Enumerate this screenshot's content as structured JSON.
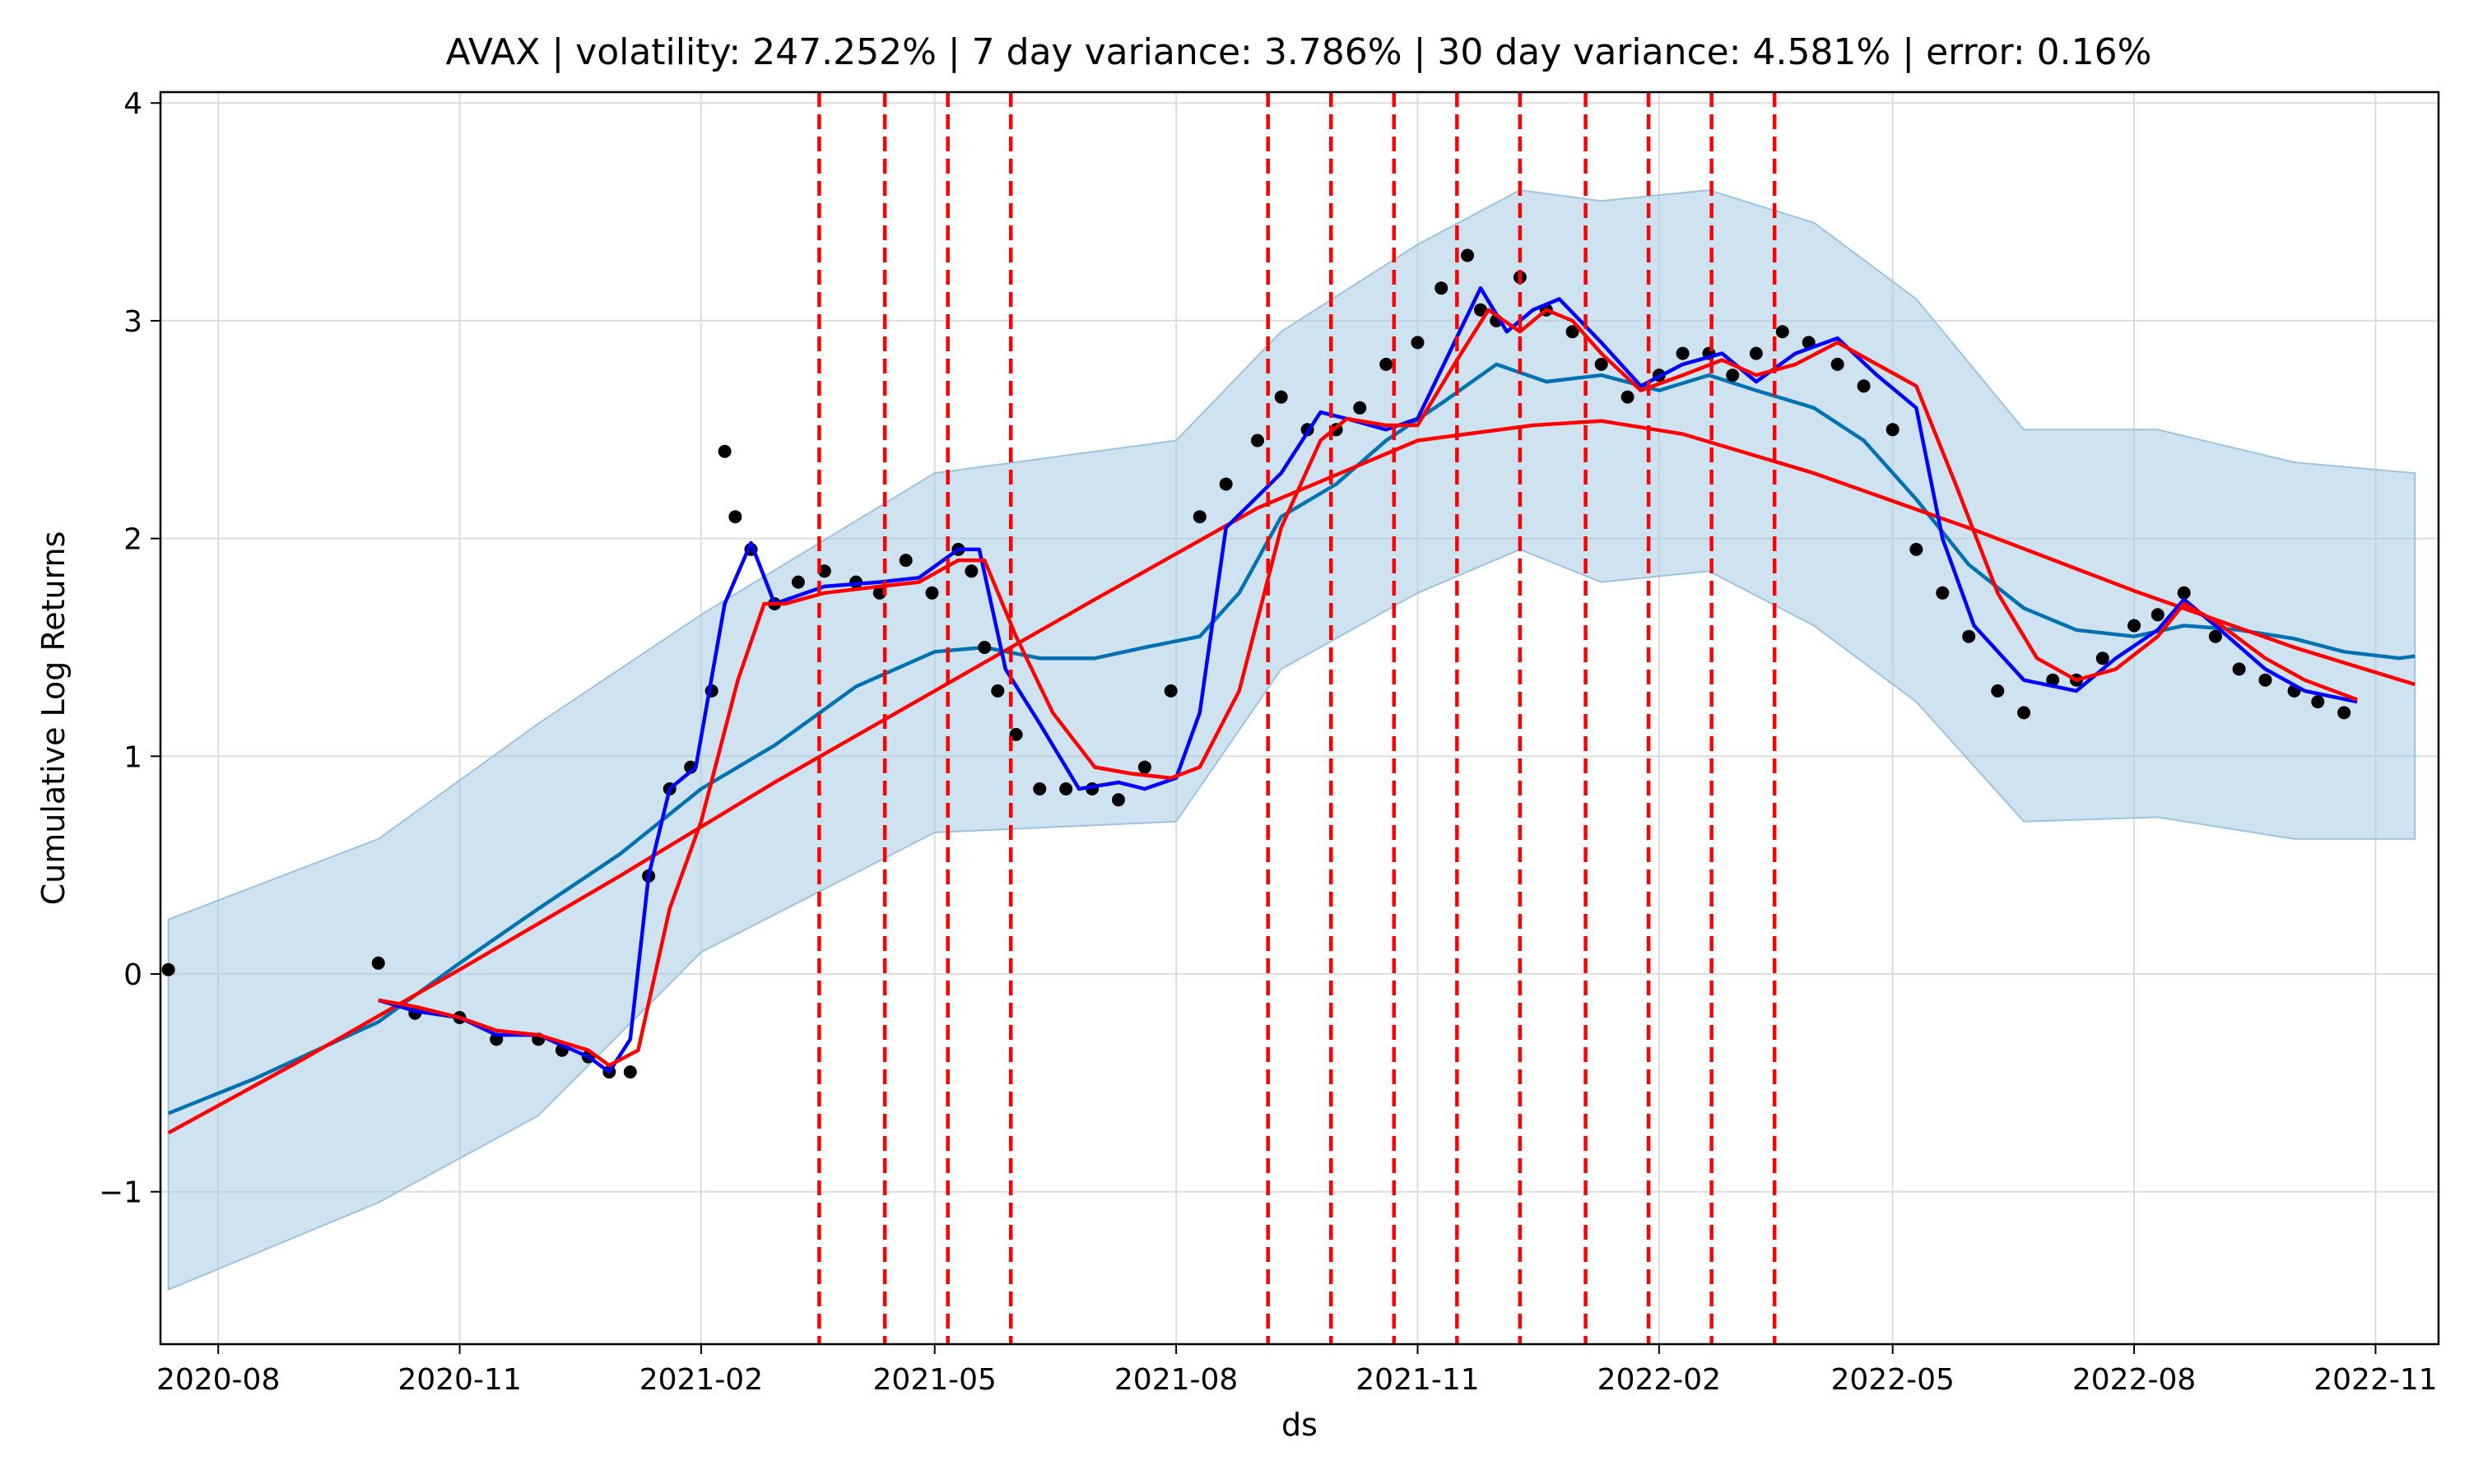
{
  "chart_data": {
    "type": "line",
    "title": "AVAX | volatility: 247.252% | 7 day variance: 3.786% | 30 day variance: 4.581% | error: 0.16%",
    "xlabel": "ds",
    "ylabel": "Cumulative Log Returns",
    "x_axis": "date",
    "xlim": [
      "2020-07-10",
      "2022-11-25"
    ],
    "ylim": [
      -1.7,
      4.05
    ],
    "x_ticks": [
      "2020-08",
      "2020-11",
      "2021-02",
      "2021-05",
      "2021-08",
      "2021-11",
      "2022-02",
      "2022-05",
      "2022-08",
      "2022-11"
    ],
    "y_ticks": [
      -1,
      0,
      1,
      2,
      3,
      4
    ],
    "y_tick_labels": [
      "−1",
      "0",
      "1",
      "2",
      "3",
      "4"
    ],
    "grid": true,
    "legend": "none",
    "colors": {
      "observed": "#000000",
      "forecast": "#0072B2",
      "interval_fill": "#a6cbe3",
      "short_ma": "#0000ff",
      "trend_and_long_ma": "#ff0000",
      "changepoints": "#ff0000"
    },
    "changepoints": [
      "2021-03-18",
      "2021-04-12",
      "2021-05-06",
      "2021-05-30",
      "2021-09-05",
      "2021-09-29",
      "2021-10-23",
      "2021-11-16",
      "2021-12-10",
      "2022-01-04",
      "2022-01-28",
      "2022-02-21",
      "2022-03-17"
    ],
    "observed": {
      "x": [
        "2020-07-13",
        "2020-10-01",
        "2020-10-15",
        "2020-11-01",
        "2020-11-15",
        "2020-12-01",
        "2020-12-10",
        "2020-12-20",
        "2020-12-28",
        "2021-01-05",
        "2021-01-12",
        "2021-01-20",
        "2021-01-28",
        "2021-02-05",
        "2021-02-10",
        "2021-02-14",
        "2021-02-20",
        "2021-03-01",
        "2021-03-10",
        "2021-03-20",
        "2021-04-01",
        "2021-04-10",
        "2021-04-20",
        "2021-04-30",
        "2021-05-10",
        "2021-05-15",
        "2021-05-20",
        "2021-05-25",
        "2021-06-01",
        "2021-06-10",
        "2021-06-20",
        "2021-06-30",
        "2021-07-10",
        "2021-07-20",
        "2021-07-30",
        "2021-08-10",
        "2021-08-20",
        "2021-09-01",
        "2021-09-10",
        "2021-09-20",
        "2021-10-01",
        "2021-10-10",
        "2021-10-20",
        "2021-11-01",
        "2021-11-10",
        "2021-11-20",
        "2021-11-25",
        "2021-12-01",
        "2021-12-10",
        "2021-12-20",
        "2021-12-30",
        "2022-01-10",
        "2022-01-20",
        "2022-02-01",
        "2022-02-10",
        "2022-02-20",
        "2022-03-01",
        "2022-03-10",
        "2022-03-20",
        "2022-03-30",
        "2022-04-10",
        "2022-04-20",
        "2022-05-01",
        "2022-05-10",
        "2022-05-20",
        "2022-05-30",
        "2022-06-10",
        "2022-06-20",
        "2022-07-01",
        "2022-07-10",
        "2022-07-20",
        "2022-08-01",
        "2022-08-10",
        "2022-08-20",
        "2022-09-01",
        "2022-09-10",
        "2022-09-20",
        "2022-10-01",
        "2022-10-10",
        "2022-10-20"
      ],
      "y": [
        0.02,
        0.05,
        -0.18,
        -0.2,
        -0.3,
        -0.3,
        -0.35,
        -0.38,
        -0.45,
        -0.45,
        0.45,
        0.85,
        0.95,
        1.3,
        2.4,
        2.1,
        1.95,
        1.7,
        1.8,
        1.85,
        1.8,
        1.75,
        1.9,
        1.75,
        1.95,
        1.85,
        1.5,
        1.3,
        1.1,
        0.85,
        0.85,
        0.85,
        0.8,
        0.95,
        1.3,
        2.1,
        2.25,
        2.45,
        2.65,
        2.5,
        2.5,
        2.6,
        2.8,
        2.9,
        3.15,
        3.3,
        3.05,
        3.0,
        3.2,
        3.05,
        2.95,
        2.8,
        2.65,
        2.75,
        2.85,
        2.85,
        2.75,
        2.85,
        2.95,
        2.9,
        2.8,
        2.7,
        2.5,
        1.95,
        1.75,
        1.55,
        1.3,
        1.2,
        1.35,
        1.35,
        1.45,
        1.6,
        1.65,
        1.75,
        1.55,
        1.4,
        1.35,
        1.3,
        1.25,
        1.2
      ]
    },
    "series": [
      {
        "role": "forecast",
        "x": [
          "2020-07-13",
          "2020-08-15",
          "2020-10-01",
          "2020-11-01",
          "2020-12-01",
          "2021-01-01",
          "2021-02-01",
          "2021-03-01",
          "2021-04-01",
          "2021-05-01",
          "2021-05-20",
          "2021-06-10",
          "2021-07-01",
          "2021-07-20",
          "2021-08-10",
          "2021-08-25",
          "2021-09-10",
          "2021-10-01",
          "2021-10-20",
          "2021-11-10",
          "2021-12-01",
          "2021-12-20",
          "2022-01-10",
          "2022-02-01",
          "2022-02-20",
          "2022-03-10",
          "2022-04-01",
          "2022-04-20",
          "2022-05-10",
          "2022-05-30",
          "2022-06-20",
          "2022-07-10",
          "2022-08-01",
          "2022-08-20",
          "2022-09-10",
          "2022-10-01",
          "2022-10-20",
          "2022-11-10",
          "2022-11-16"
        ],
        "y": [
          -0.64,
          -0.48,
          -0.22,
          0.05,
          0.3,
          0.55,
          0.85,
          1.05,
          1.32,
          1.48,
          1.5,
          1.45,
          1.45,
          1.5,
          1.55,
          1.75,
          2.1,
          2.25,
          2.45,
          2.62,
          2.8,
          2.72,
          2.75,
          2.68,
          2.75,
          2.68,
          2.6,
          2.45,
          2.18,
          1.88,
          1.68,
          1.58,
          1.55,
          1.6,
          1.58,
          1.54,
          1.48,
          1.45,
          1.46
        ]
      },
      {
        "role": "interval-upper",
        "x": [
          "2020-07-13",
          "2020-10-01",
          "2020-12-01",
          "2021-02-01",
          "2021-05-01",
          "2021-08-01",
          "2021-09-10",
          "2021-11-01",
          "2021-12-10",
          "2022-01-10",
          "2022-02-20",
          "2022-04-01",
          "2022-05-10",
          "2022-06-20",
          "2022-08-10",
          "2022-10-01",
          "2022-11-16"
        ],
        "y": [
          0.25,
          0.62,
          1.15,
          1.65,
          2.3,
          2.45,
          2.95,
          3.35,
          3.6,
          3.55,
          3.6,
          3.45,
          3.1,
          2.5,
          2.5,
          2.35,
          2.3
        ]
      },
      {
        "role": "interval-lower",
        "x": [
          "2020-07-13",
          "2020-10-01",
          "2020-12-01",
          "2021-02-01",
          "2021-05-01",
          "2021-08-01",
          "2021-09-10",
          "2021-11-01",
          "2021-12-10",
          "2022-01-10",
          "2022-02-20",
          "2022-04-01",
          "2022-05-10",
          "2022-06-20",
          "2022-08-10",
          "2022-10-01",
          "2022-11-16"
        ],
        "y": [
          -1.45,
          -1.05,
          -0.65,
          0.1,
          0.65,
          0.7,
          1.4,
          1.75,
          1.95,
          1.8,
          1.85,
          1.6,
          1.25,
          0.7,
          0.72,
          0.62,
          0.62
        ]
      },
      {
        "role": "short-moving-average",
        "x": [
          "2020-10-01",
          "2020-10-15",
          "2020-11-01",
          "2020-11-15",
          "2020-12-01",
          "2020-12-20",
          "2020-12-28",
          "2021-01-05",
          "2021-01-12",
          "2021-01-20",
          "2021-01-30",
          "2021-02-10",
          "2021-02-20",
          "2021-03-01",
          "2021-03-20",
          "2021-04-10",
          "2021-04-25",
          "2021-05-10",
          "2021-05-18",
          "2021-05-28",
          "2021-06-10",
          "2021-06-25",
          "2021-07-10",
          "2021-07-20",
          "2021-08-01",
          "2021-08-10",
          "2021-08-20",
          "2021-09-10",
          "2021-09-25",
          "2021-10-05",
          "2021-10-20",
          "2021-11-01",
          "2021-11-15",
          "2021-11-25",
          "2021-12-05",
          "2021-12-15",
          "2021-12-25",
          "2022-01-10",
          "2022-01-25",
          "2022-02-10",
          "2022-02-25",
          "2022-03-10",
          "2022-03-25",
          "2022-04-10",
          "2022-04-25",
          "2022-05-10",
          "2022-05-20",
          "2022-06-01",
          "2022-06-20",
          "2022-07-10",
          "2022-07-25",
          "2022-08-10",
          "2022-08-20",
          "2022-09-01",
          "2022-09-20",
          "2022-10-05",
          "2022-10-25"
        ],
        "y": [
          -0.12,
          -0.17,
          -0.2,
          -0.28,
          -0.28,
          -0.38,
          -0.45,
          -0.3,
          0.45,
          0.85,
          0.95,
          1.7,
          1.98,
          1.7,
          1.78,
          1.8,
          1.82,
          1.95,
          1.95,
          1.4,
          1.15,
          0.85,
          0.88,
          0.85,
          0.9,
          1.2,
          2.05,
          2.3,
          2.58,
          2.55,
          2.5,
          2.55,
          2.9,
          3.15,
          2.95,
          3.05,
          3.1,
          2.9,
          2.7,
          2.8,
          2.85,
          2.72,
          2.85,
          2.92,
          2.75,
          2.6,
          2.0,
          1.6,
          1.35,
          1.3,
          1.45,
          1.58,
          1.72,
          1.6,
          1.4,
          1.3,
          1.25
        ]
      },
      {
        "role": "long-moving-average",
        "x": [
          "2020-10-01",
          "2020-10-15",
          "2020-11-01",
          "2020-11-15",
          "2020-12-01",
          "2020-12-20",
          "2020-12-28",
          "2021-01-08",
          "2021-01-20",
          "2021-02-01",
          "2021-02-15",
          "2021-02-25",
          "2021-03-05",
          "2021-03-20",
          "2021-04-10",
          "2021-04-25",
          "2021-05-10",
          "2021-05-20",
          "2021-06-01",
          "2021-06-15",
          "2021-07-01",
          "2021-07-15",
          "2021-07-30",
          "2021-08-10",
          "2021-08-25",
          "2021-09-10",
          "2021-09-25",
          "2021-10-05",
          "2021-10-20",
          "2021-11-01",
          "2021-11-15",
          "2021-11-28",
          "2021-12-10",
          "2021-12-20",
          "2021-12-30",
          "2022-01-10",
          "2022-01-25",
          "2022-02-10",
          "2022-02-25",
          "2022-03-10",
          "2022-03-25",
          "2022-04-10",
          "2022-04-25",
          "2022-05-10",
          "2022-05-25",
          "2022-06-10",
          "2022-06-25",
          "2022-07-10",
          "2022-07-25",
          "2022-08-10",
          "2022-08-20",
          "2022-09-01",
          "2022-09-20",
          "2022-10-05",
          "2022-10-25"
        ],
        "y": [
          -0.12,
          -0.15,
          -0.2,
          -0.26,
          -0.28,
          -0.35,
          -0.42,
          -0.35,
          0.3,
          0.7,
          1.35,
          1.7,
          1.7,
          1.75,
          1.78,
          1.8,
          1.9,
          1.9,
          1.55,
          1.2,
          0.95,
          0.92,
          0.9,
          0.95,
          1.3,
          2.05,
          2.45,
          2.55,
          2.52,
          2.52,
          2.8,
          3.05,
          2.95,
          3.05,
          3.0,
          2.85,
          2.68,
          2.75,
          2.82,
          2.75,
          2.8,
          2.9,
          2.8,
          2.7,
          2.25,
          1.75,
          1.45,
          1.35,
          1.4,
          1.55,
          1.7,
          1.62,
          1.45,
          1.35,
          1.26
        ]
      },
      {
        "role": "trend",
        "x": [
          "2020-07-13",
          "2020-09-01",
          "2020-11-01",
          "2021-01-01",
          "2021-03-01",
          "2021-05-01",
          "2021-07-01",
          "2021-09-01",
          "2021-11-01",
          "2021-12-15",
          "2022-01-10",
          "2022-02-10",
          "2022-04-01",
          "2022-06-01",
          "2022-08-01",
          "2022-10-01",
          "2022-11-16"
        ],
        "y": [
          -0.73,
          -0.4,
          0.02,
          0.45,
          0.88,
          1.3,
          1.72,
          2.14,
          2.45,
          2.52,
          2.54,
          2.48,
          2.3,
          2.04,
          1.76,
          1.5,
          1.33
        ]
      }
    ]
  }
}
